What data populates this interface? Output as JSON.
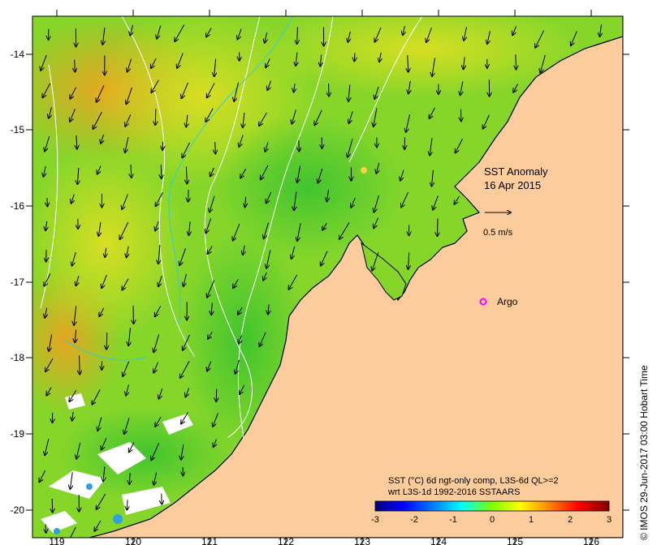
{
  "map": {
    "title_line1": "SST Anomaly",
    "title_line2": "16 Apr 2015",
    "velocity_scale_label": "0.5 m/s",
    "argo_label": "Argo",
    "legend_line1": "SST (°C) 6d ngt-only comp, L3S-6d QL>=2",
    "legend_line2": "wrt L3S-1d 1992-2016 SSTAARS",
    "colorbar_ticks": [
      "-3",
      "-2",
      "-1",
      "0",
      "1",
      "2",
      "3"
    ],
    "colorbar_range": [
      -3,
      3
    ],
    "credit": "© IMOS 29-Jun-2017 03:00 Hobart Time",
    "lon_ticks": [
      "119",
      "120",
      "121",
      "122",
      "123",
      "124",
      "125",
      "126"
    ],
    "lat_ticks": [
      "-14",
      "-15",
      "-16",
      "-17",
      "-18",
      "-19",
      "-20"
    ],
    "colors": {
      "land": "#fccc9c",
      "coast": "#000000",
      "argo": "#ff00ff",
      "anomaly_cold": "#00007f",
      "anomaly_zero": "#7fff00",
      "anomaly_warm": "#7f0000"
    }
  }
}
